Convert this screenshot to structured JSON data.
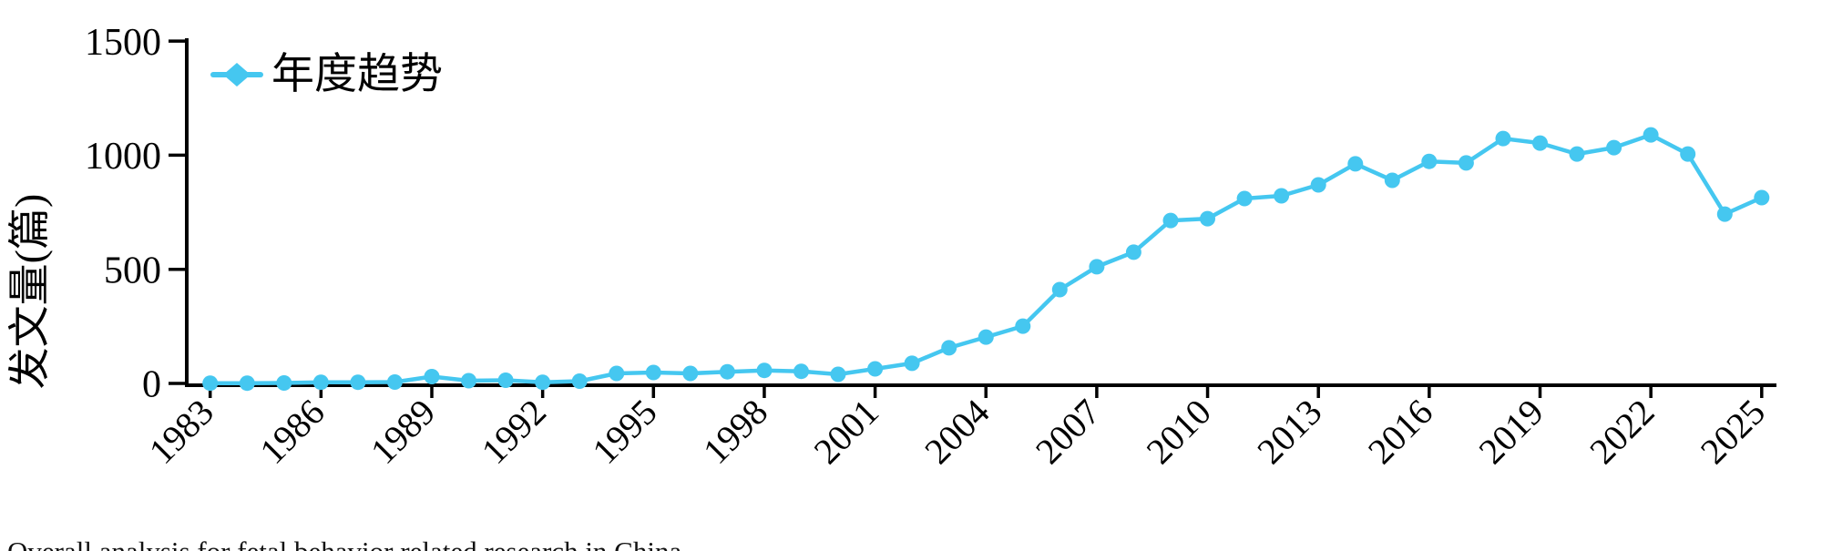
{
  "chart_data": {
    "type": "line",
    "title": "",
    "xlabel": "",
    "ylabel": "发文量(篇)",
    "ylim": [
      0,
      1500
    ],
    "yticks": [
      0,
      500,
      1000,
      1500
    ],
    "xticks": [
      1983,
      1986,
      1989,
      1992,
      1995,
      1998,
      2001,
      2004,
      2007,
      2010,
      2013,
      2016,
      2019,
      2022,
      2025
    ],
    "grid": false,
    "legend_position": "top-left",
    "line_color": "#45C7F0",
    "axis_color": "#000000",
    "series": [
      {
        "name": "年度趋势",
        "x": [
          1983,
          1984,
          1985,
          1986,
          1987,
          1988,
          1989,
          1990,
          1991,
          1992,
          1993,
          1994,
          1995,
          1996,
          1997,
          1998,
          1999,
          2000,
          2001,
          2002,
          2003,
          2004,
          2005,
          2006,
          2007,
          2008,
          2009,
          2010,
          2011,
          2012,
          2013,
          2014,
          2015,
          2016,
          2017,
          2018,
          2019,
          2020,
          2021,
          2022,
          2023,
          2024,
          2025
        ],
        "values": [
          1,
          1,
          2,
          5,
          5,
          6,
          30,
          12,
          14,
          5,
          10,
          44,
          48,
          44,
          51,
          57,
          53,
          40,
          64,
          88,
          156,
          203,
          251,
          411,
          511,
          575,
          714,
          722,
          810,
          822,
          870,
          962,
          890,
          973,
          966,
          1073,
          1053,
          1005,
          1033,
          1089,
          1005,
          742,
          814
        ]
      }
    ]
  },
  "legend": {
    "label": "年度趋势"
  },
  "axes": {
    "y_title": "发文量(篇)"
  },
  "caption": {
    "text": "Overall analysis for fetal behavior related research in China"
  }
}
